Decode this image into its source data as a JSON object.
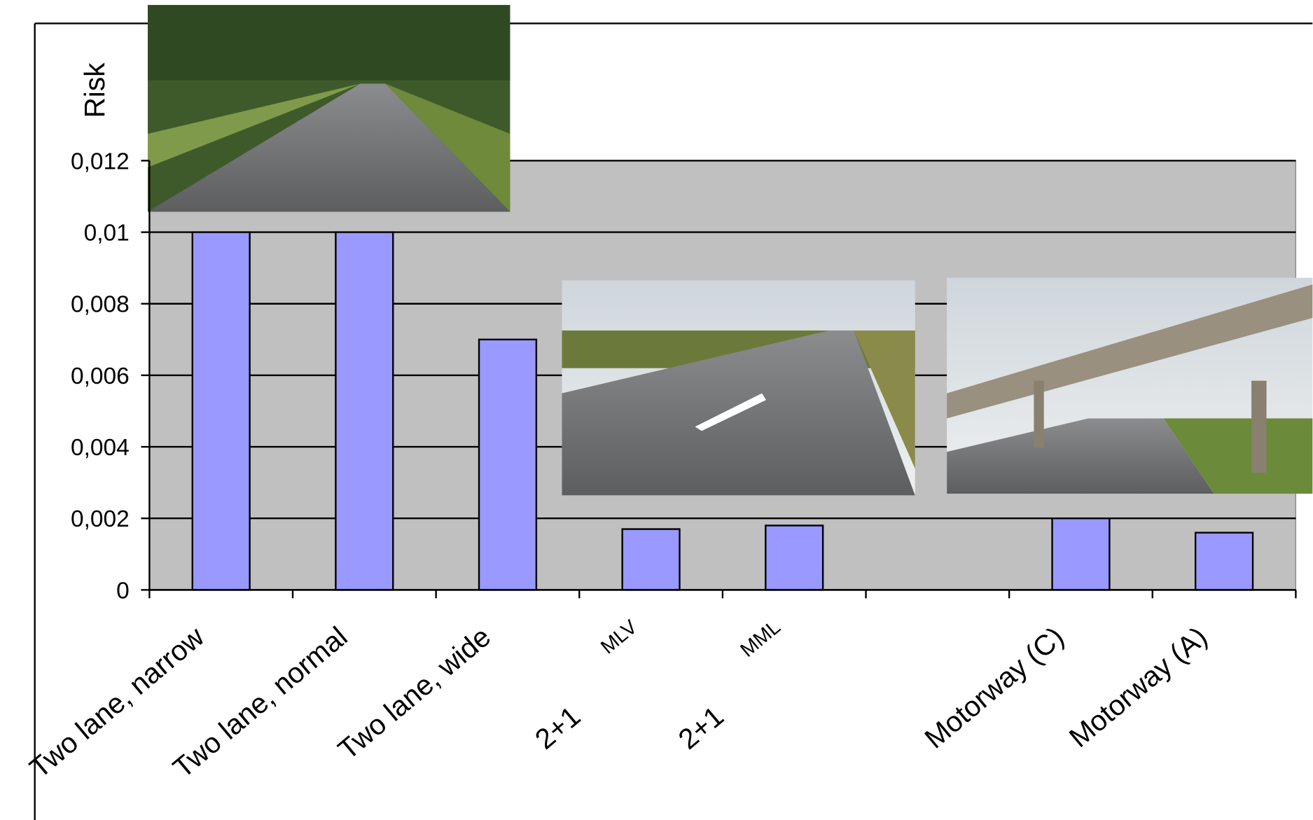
{
  "chart_data": {
    "type": "bar",
    "y_label": "Risk",
    "categories": [
      "Two lane, narrow",
      "Two lane, normal",
      "Two lane, wide",
      "2+1",
      "2+1",
      null,
      "Motorway (C)",
      "Motorway (A)"
    ],
    "sublabels": [
      null,
      null,
      null,
      "MLV",
      "MML",
      null,
      null,
      null
    ],
    "values": [
      0.01,
      0.01,
      0.007,
      0.0017,
      0.0018,
      null,
      0.002,
      0.0016
    ],
    "color": "#9999ff",
    "ylim": [
      0,
      0.012
    ],
    "yticks": [
      0,
      {
        "value": 0.002,
        "label": "0,002"
      },
      {
        "value": 0.004,
        "label": "0,004"
      },
      {
        "value": 0.006,
        "label": "0,006"
      },
      {
        "value": 0.008,
        "label": "0,008"
      },
      {
        "value": 0.01,
        "label": "0,01"
      },
      {
        "value": 0.012,
        "label": "0,012"
      }
    ],
    "grid": true
  }
}
